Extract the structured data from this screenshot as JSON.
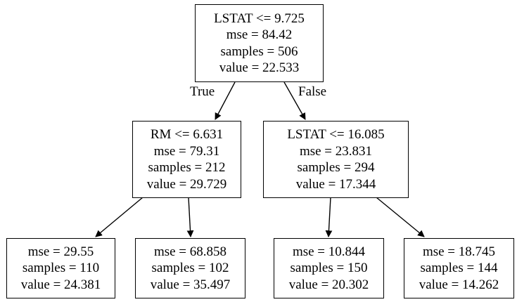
{
  "tree": {
    "root": {
      "lines": [
        "LSTAT <= 9.725",
        "mse = 84.42",
        "samples = 506",
        "value = 22.533"
      ]
    },
    "left": {
      "lines": [
        "RM <= 6.631",
        "mse = 79.31",
        "samples = 212",
        "value = 29.729"
      ]
    },
    "right": {
      "lines": [
        "LSTAT <= 16.085",
        "mse = 23.831",
        "samples = 294",
        "value = 17.344"
      ]
    },
    "left_left": {
      "lines": [
        "mse = 29.55",
        "samples = 110",
        "value = 24.381"
      ]
    },
    "left_right": {
      "lines": [
        "mse = 68.858",
        "samples = 102",
        "value = 35.497"
      ]
    },
    "right_left": {
      "lines": [
        "mse = 10.844",
        "samples = 150",
        "value = 20.302"
      ]
    },
    "right_right": {
      "lines": [
        "mse = 18.745",
        "samples = 144",
        "value = 14.262"
      ]
    },
    "edge_labels": {
      "true_label": "True",
      "false_label": "False"
    }
  }
}
